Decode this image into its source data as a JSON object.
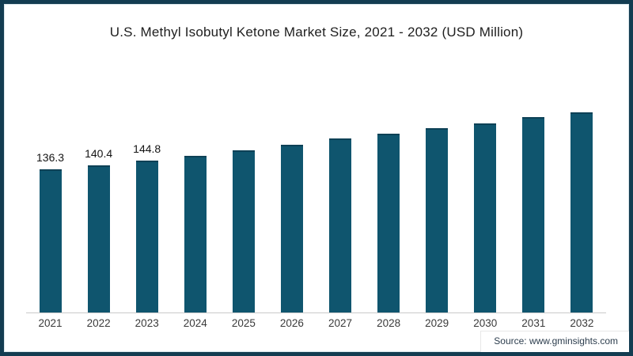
{
  "title": "U.S. Methyl Isobutyl Ketone Market Size, 2021 - 2032 (USD Million)",
  "source_text": "Source: www.gminsights.com",
  "colors": {
    "bar": "#0f556e",
    "bar_top_edge": "#0d4156",
    "frame_border": "#133c51",
    "axis_line": "#c9c9c9",
    "title_text": "#1e1e1e",
    "source_text": "#2d3e4e"
  },
  "chart_data": {
    "type": "bar",
    "title": "U.S. Methyl Isobutyl Ketone Market Size, 2021 - 2032 (USD Million)",
    "xlabel": "",
    "ylabel": "",
    "unit": "USD Million",
    "categories": [
      "2021",
      "2022",
      "2023",
      "2024",
      "2025",
      "2026",
      "2027",
      "2028",
      "2029",
      "2030",
      "2031",
      "2032"
    ],
    "values": [
      136.3,
      140.4,
      144.8,
      149.4,
      154.3,
      159.9,
      165.6,
      170.5,
      175.8,
      180.3,
      186.3,
      190.8
    ],
    "value_labels": [
      "136.3",
      "140.4",
      "144.8",
      null,
      null,
      null,
      null,
      null,
      null,
      null,
      null,
      null
    ],
    "bar_color": "#0f556e",
    "ylim": [
      0,
      208
    ],
    "grid": false,
    "legend": false,
    "y_axis_shown": false,
    "note": "only first three bars carry visible data labels; remaining values estimated from bar heights"
  }
}
